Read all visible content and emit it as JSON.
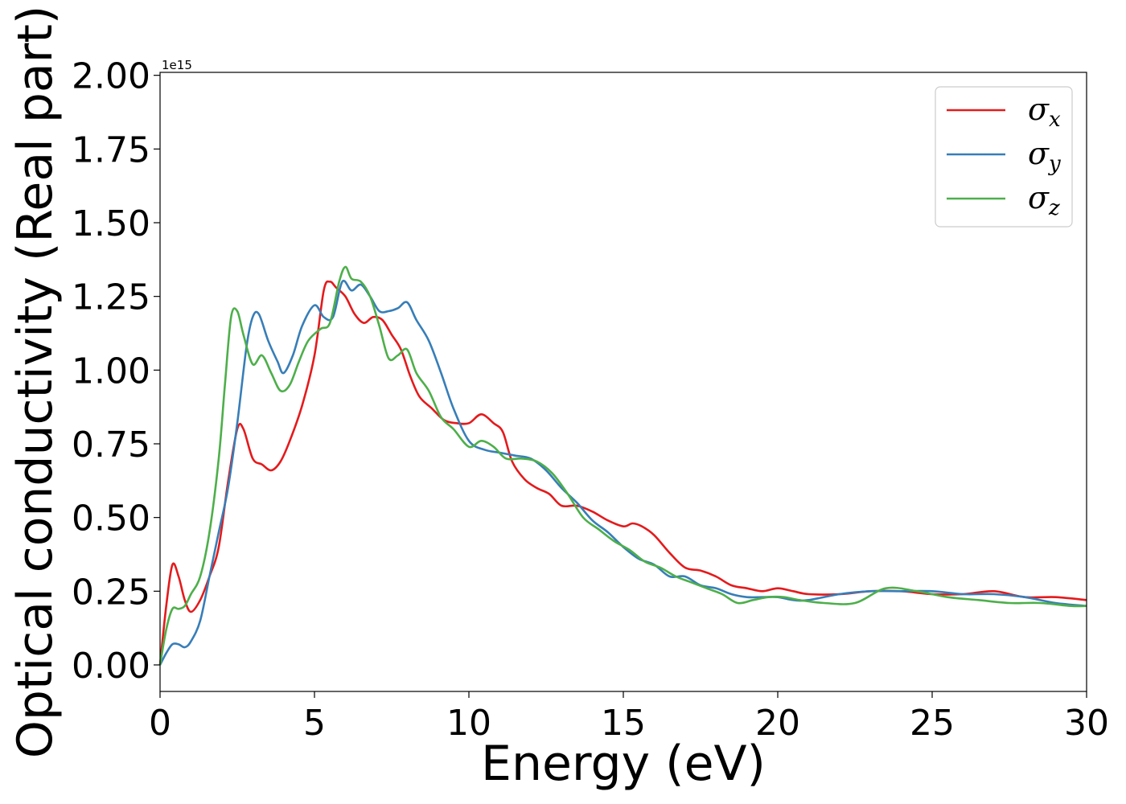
{
  "chart_data": {
    "type": "line",
    "xlabel": "Energy (eV)",
    "ylabel": "Optical conductivity (Real part)",
    "y_offset_label": "1e15",
    "xlim": [
      0,
      30
    ],
    "ylim": [
      -0.09,
      2.01
    ],
    "xticks": [
      0,
      5,
      10,
      15,
      20,
      25,
      30
    ],
    "xtick_labels": [
      "0",
      "5",
      "10",
      "15",
      "20",
      "25",
      "30"
    ],
    "yticks": [
      0.0,
      0.25,
      0.5,
      0.75,
      1.0,
      1.25,
      1.5,
      1.75,
      2.0
    ],
    "ytick_labels": [
      "0.00",
      "0.25",
      "0.50",
      "0.75",
      "1.00",
      "1.25",
      "1.50",
      "1.75",
      "2.00"
    ],
    "grid": false,
    "legend_position": "top-right",
    "series": [
      {
        "name": "σx",
        "symbol": "σ",
        "subscript": "x",
        "color": "#e41a1c",
        "x": [
          0,
          0.2,
          0.4,
          0.6,
          0.8,
          1.0,
          1.3,
          1.6,
          1.9,
          2.2,
          2.5,
          2.7,
          3.0,
          3.3,
          3.6,
          3.9,
          4.2,
          4.6,
          5.0,
          5.3,
          5.5,
          5.7,
          6.0,
          6.3,
          6.6,
          6.9,
          7.2,
          7.5,
          7.8,
          8.1,
          8.4,
          8.8,
          9.2,
          9.6,
          10.0,
          10.4,
          10.8,
          11.1,
          11.4,
          11.8,
          12.2,
          12.6,
          13.0,
          13.5,
          14.0,
          14.5,
          15.0,
          15.3,
          15.6,
          16.0,
          16.5,
          17.0,
          17.5,
          18.0,
          18.5,
          19.0,
          19.5,
          20.0,
          20.5,
          21.0,
          22.0,
          23.0,
          24.0,
          25.0,
          26.0,
          27.0,
          28.0,
          29.0,
          30.0
        ],
        "y": [
          0.0,
          0.2,
          0.34,
          0.3,
          0.22,
          0.18,
          0.22,
          0.3,
          0.4,
          0.62,
          0.8,
          0.8,
          0.7,
          0.68,
          0.66,
          0.69,
          0.76,
          0.88,
          1.05,
          1.27,
          1.3,
          1.28,
          1.25,
          1.19,
          1.16,
          1.18,
          1.17,
          1.12,
          1.07,
          0.98,
          0.91,
          0.87,
          0.83,
          0.82,
          0.82,
          0.85,
          0.82,
          0.79,
          0.69,
          0.63,
          0.6,
          0.58,
          0.54,
          0.54,
          0.52,
          0.49,
          0.47,
          0.48,
          0.47,
          0.44,
          0.38,
          0.33,
          0.32,
          0.3,
          0.27,
          0.26,
          0.25,
          0.26,
          0.25,
          0.24,
          0.24,
          0.25,
          0.25,
          0.24,
          0.24,
          0.25,
          0.23,
          0.23,
          0.22
        ]
      },
      {
        "name": "σy",
        "symbol": "σ",
        "subscript": "y",
        "color": "#377eb8",
        "x": [
          0,
          0.2,
          0.4,
          0.6,
          0.8,
          1.0,
          1.3,
          1.6,
          1.9,
          2.2,
          2.5,
          2.8,
          3.0,
          3.2,
          3.5,
          3.8,
          4.0,
          4.3,
          4.6,
          5.0,
          5.3,
          5.6,
          5.9,
          6.2,
          6.5,
          6.8,
          7.1,
          7.4,
          7.7,
          8.0,
          8.3,
          8.7,
          9.1,
          9.5,
          10.0,
          10.5,
          11.0,
          11.5,
          12.0,
          12.5,
          13.0,
          13.5,
          14.0,
          14.5,
          15.0,
          15.5,
          16.0,
          16.5,
          17.0,
          17.5,
          18.0,
          18.5,
          19.0,
          19.5,
          20.0,
          20.5,
          21.0,
          22.0,
          23.0,
          24.0,
          25.0,
          26.0,
          27.0,
          28.0,
          29.0,
          30.0
        ],
        "y": [
          0.0,
          0.04,
          0.07,
          0.07,
          0.06,
          0.08,
          0.15,
          0.3,
          0.45,
          0.6,
          0.82,
          1.08,
          1.18,
          1.19,
          1.1,
          1.03,
          0.99,
          1.05,
          1.15,
          1.22,
          1.18,
          1.18,
          1.3,
          1.27,
          1.29,
          1.25,
          1.2,
          1.2,
          1.21,
          1.23,
          1.17,
          1.1,
          0.99,
          0.87,
          0.76,
          0.73,
          0.72,
          0.71,
          0.7,
          0.66,
          0.6,
          0.55,
          0.49,
          0.45,
          0.4,
          0.36,
          0.34,
          0.3,
          0.3,
          0.27,
          0.26,
          0.24,
          0.23,
          0.23,
          0.23,
          0.22,
          0.22,
          0.24,
          0.25,
          0.25,
          0.25,
          0.24,
          0.24,
          0.23,
          0.21,
          0.2
        ]
      },
      {
        "name": "σz",
        "symbol": "σ",
        "subscript": "z",
        "color": "#4daf4a",
        "x": [
          0,
          0.2,
          0.4,
          0.6,
          0.8,
          1.0,
          1.3,
          1.6,
          1.9,
          2.1,
          2.3,
          2.5,
          2.7,
          3.0,
          3.3,
          3.6,
          3.9,
          4.2,
          4.5,
          4.8,
          5.2,
          5.5,
          5.8,
          6.0,
          6.2,
          6.5,
          6.8,
          7.1,
          7.4,
          7.7,
          8.0,
          8.3,
          8.7,
          9.1,
          9.5,
          10.0,
          10.4,
          10.8,
          11.2,
          11.7,
          12.2,
          12.7,
          13.2,
          13.7,
          14.2,
          14.7,
          15.2,
          15.7,
          16.2,
          16.7,
          17.2,
          17.7,
          18.2,
          18.7,
          19.2,
          19.7,
          20.2,
          20.7,
          21.5,
          22.5,
          23.5,
          24.5,
          25.5,
          26.5,
          27.5,
          28.5,
          29.5,
          30.0
        ],
        "y": [
          0.0,
          0.12,
          0.19,
          0.19,
          0.2,
          0.24,
          0.3,
          0.45,
          0.7,
          0.95,
          1.18,
          1.2,
          1.12,
          1.02,
          1.05,
          0.99,
          0.93,
          0.95,
          1.03,
          1.1,
          1.14,
          1.16,
          1.3,
          1.35,
          1.31,
          1.3,
          1.25,
          1.15,
          1.04,
          1.05,
          1.07,
          0.99,
          0.93,
          0.84,
          0.8,
          0.74,
          0.76,
          0.74,
          0.7,
          0.7,
          0.69,
          0.65,
          0.58,
          0.5,
          0.46,
          0.42,
          0.39,
          0.35,
          0.33,
          0.3,
          0.28,
          0.26,
          0.24,
          0.21,
          0.22,
          0.23,
          0.23,
          0.22,
          0.21,
          0.21,
          0.26,
          0.25,
          0.23,
          0.22,
          0.21,
          0.21,
          0.2,
          0.2
        ]
      }
    ]
  }
}
